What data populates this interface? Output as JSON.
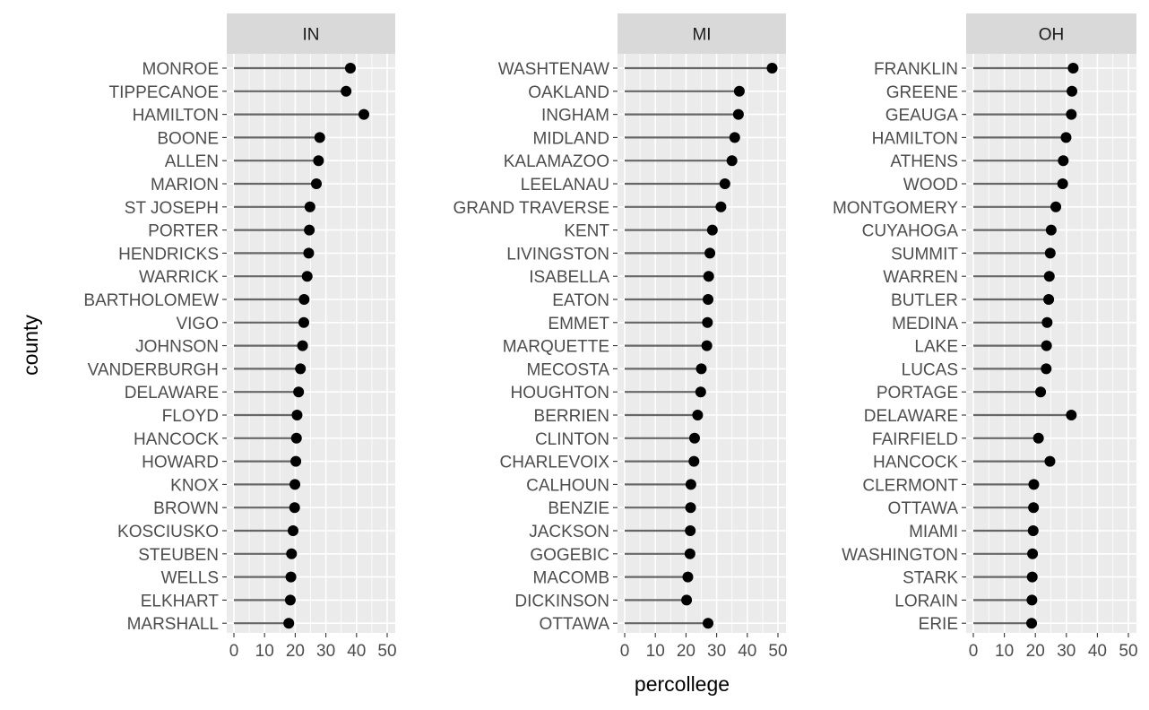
{
  "chart_data": {
    "type": "lollipop",
    "xlabel": "percollege",
    "ylabel": "county",
    "xlim": [
      0,
      50
    ],
    "x_ticks": [
      0,
      10,
      20,
      30,
      40,
      50
    ],
    "grid": true,
    "colors": {
      "panel_background": "#ebebeb",
      "strip_background": "#d9d9d9",
      "grid": "#ffffff",
      "stem": "#666666",
      "point": "#000000"
    },
    "panels": [
      {
        "label": "IN",
        "counties": [
          "MONROE",
          "TIPPECANOE",
          "HAMILTON",
          "BOONE",
          "ALLEN",
          "MARION",
          "ST JOSEPH",
          "PORTER",
          "HENDRICKS",
          "WARRICK",
          "BARTHOLOMEW",
          "VIGO",
          "JOHNSON",
          "VANDERBURGH",
          "DELAWARE",
          "FLOYD",
          "HANCOCK",
          "HOWARD",
          "KNOX",
          "BROWN",
          "KOSCIUSKO",
          "STEUBEN",
          "WELLS",
          "ELKHART",
          "MARSHALL"
        ],
        "values": [
          38.0,
          36.6,
          42.4,
          28.0,
          27.6,
          26.9,
          24.8,
          24.6,
          24.4,
          23.9,
          22.9,
          22.8,
          22.4,
          21.7,
          21.1,
          20.6,
          20.4,
          20.2,
          19.9,
          19.8,
          19.3,
          18.8,
          18.6,
          18.4,
          17.9
        ]
      },
      {
        "label": "MI",
        "counties": [
          "WASHTENAW",
          "OAKLAND",
          "INGHAM",
          "MIDLAND",
          "KALAMAZOO",
          "LEELANAU",
          "GRAND TRAVERSE",
          "KENT",
          "LIVINGSTON",
          "ISABELLA",
          "EATON",
          "EMMET",
          "MARQUETTE",
          "MECOSTA",
          "HOUGHTON",
          "BERRIEN",
          "CLINTON",
          "CHARLEVOIX",
          "CALHOUN",
          "BENZIE",
          "JACKSON",
          "GOGEBIC",
          "MACOMB",
          "DICKINSON",
          "OTTAWA"
        ],
        "values": [
          48.1,
          37.4,
          37.1,
          35.9,
          35.0,
          32.7,
          31.4,
          28.6,
          27.8,
          27.4,
          27.2,
          27.0,
          26.8,
          25.0,
          24.8,
          23.8,
          22.8,
          22.6,
          21.6,
          21.5,
          21.4,
          21.3,
          20.6,
          20.2,
          27.2
        ]
      },
      {
        "label": "OH",
        "counties": [
          "FRANKLIN",
          "GREENE",
          "GEAUGA",
          "HAMILTON",
          "ATHENS",
          "WOOD",
          "MONTGOMERY",
          "CUYAHOGA",
          "SUMMIT",
          "WARREN",
          "BUTLER",
          "MEDINA",
          "LAKE",
          "LUCAS",
          "PORTAGE",
          "DELAWARE",
          "FAIRFIELD",
          "HANCOCK",
          "CLERMONT",
          "OTTAWA",
          "MIAMI",
          "WASHINGTON",
          "STARK",
          "LORAIN",
          "ERIE"
        ],
        "values": [
          32.2,
          31.8,
          31.6,
          29.9,
          29.0,
          28.8,
          26.6,
          25.1,
          24.8,
          24.5,
          24.3,
          23.8,
          23.6,
          23.5,
          21.7,
          31.6,
          21.0,
          24.7,
          19.5,
          19.4,
          19.3,
          19.1,
          19.0,
          18.9,
          18.8
        ]
      }
    ]
  }
}
